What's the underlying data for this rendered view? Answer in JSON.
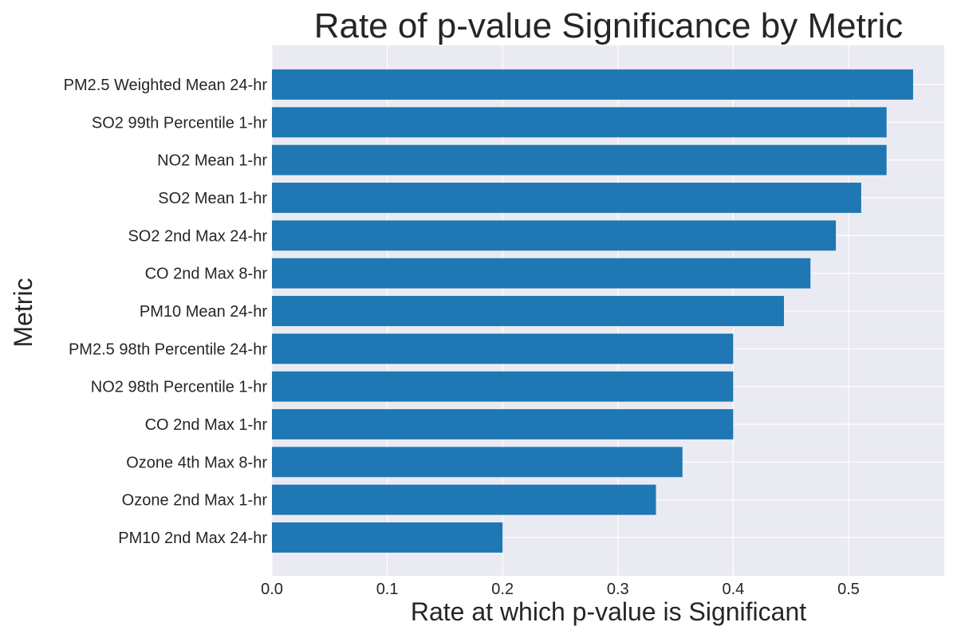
{
  "chart_data": {
    "type": "bar",
    "orientation": "horizontal",
    "title": "Rate of p-value Significance by Metric",
    "xlabel": "Rate at which p-value is Significant",
    "ylabel": "Metric",
    "categories": [
      "PM2.5 Weighted Mean 24-hr",
      "SO2 99th Percentile 1-hr",
      "NO2 Mean 1-hr",
      "SO2 Mean 1-hr",
      "SO2 2nd Max 24-hr",
      "CO 2nd Max 8-hr",
      "PM10 Mean 24-hr",
      "PM2.5 98th Percentile 24-hr",
      "NO2 98th Percentile 1-hr",
      "CO 2nd Max 1-hr",
      "Ozone 4th Max 8-hr",
      "Ozone 2nd Max 1-hr",
      "PM10 2nd Max 24-hr"
    ],
    "values": [
      0.556,
      0.533,
      0.533,
      0.511,
      0.489,
      0.467,
      0.444,
      0.4,
      0.4,
      0.4,
      0.356,
      0.333,
      0.2
    ],
    "xlim": [
      0,
      0.583
    ],
    "xticks": [
      "0.0",
      "0.1",
      "0.2",
      "0.3",
      "0.4",
      "0.5"
    ],
    "xtick_values": [
      0,
      0.1,
      0.2,
      0.3,
      0.4,
      0.5
    ],
    "grid": true,
    "bar_color": "#1f77b4",
    "background_color": "#eaeaf2"
  }
}
